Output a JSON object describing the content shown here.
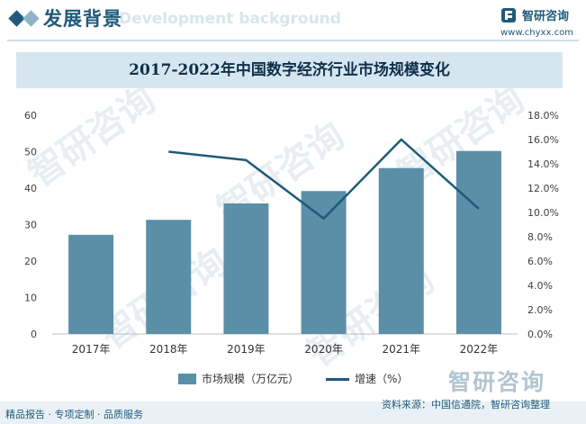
{
  "header": {
    "section_title": "发展背景",
    "section_en": "Development background",
    "brand_name": "智研咨询",
    "brand_url": "www.chyxx.com"
  },
  "watermark": {
    "text": "智研咨询"
  },
  "chart_data": {
    "type": "bar",
    "title": "2017-2022年中国数字经济行业市场规模变化",
    "categories": [
      "2017年",
      "2018年",
      "2019年",
      "2020年",
      "2021年",
      "2022年"
    ],
    "series": [
      {
        "name": "市场规模（万亿元）",
        "type": "bar",
        "axis": "left",
        "color": "#5b8fa7",
        "values": [
          27.2,
          31.3,
          35.8,
          39.2,
          45.5,
          50.2
        ]
      },
      {
        "name": "增速（%）",
        "type": "line",
        "axis": "right",
        "color": "#1f5a7a",
        "values": [
          null,
          15.0,
          14.3,
          9.5,
          16.0,
          10.3
        ]
      }
    ],
    "left_axis": {
      "min": 0,
      "max": 60,
      "ticks": [
        "0",
        "10",
        "20",
        "30",
        "40",
        "50",
        "60"
      ]
    },
    "right_axis": {
      "min": 0,
      "max": 18,
      "ticks": [
        "0.0%",
        "2.0%",
        "4.0%",
        "6.0%",
        "8.0%",
        "10.0%",
        "12.0%",
        "14.0%",
        "16.0%",
        "18.0%"
      ]
    },
    "grid": false,
    "legend_position": "bottom"
  },
  "footer": {
    "left": "精品报告 · 专项定制 · 品质服务",
    "source": "资料来源：中国信通院，智研咨询整理",
    "brand": "智研咨询"
  }
}
